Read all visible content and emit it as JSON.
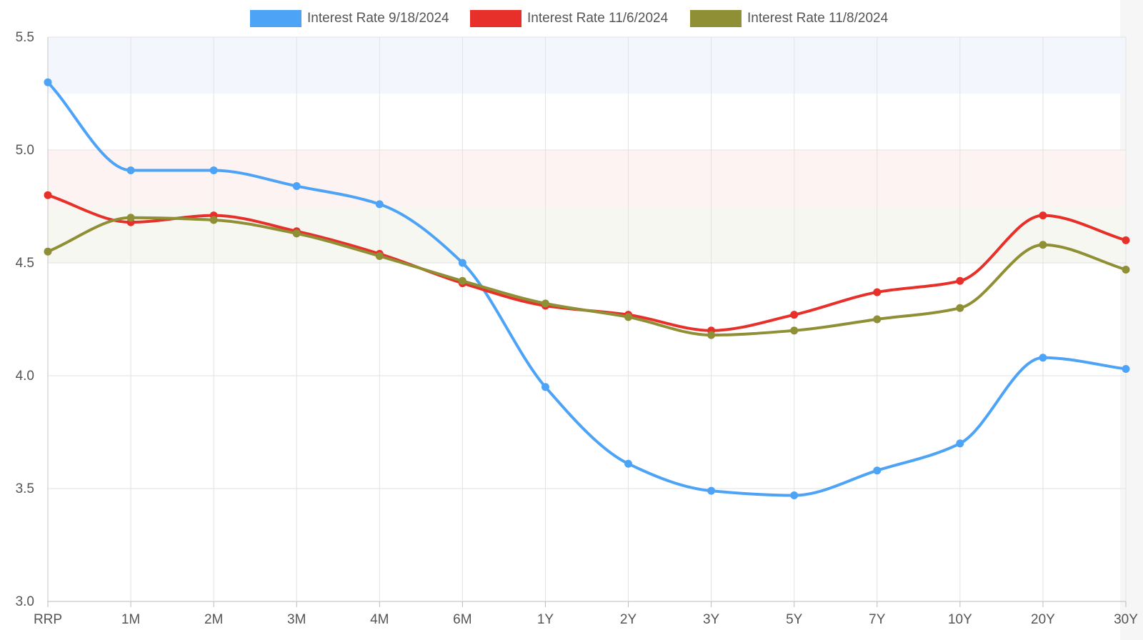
{
  "chart_data": {
    "type": "line",
    "categories": [
      "RRP",
      "1M",
      "2M",
      "3M",
      "4M",
      "6M",
      "1Y",
      "2Y",
      "3Y",
      "5Y",
      "7Y",
      "10Y",
      "20Y",
      "30Y"
    ],
    "series": [
      {
        "name": "Interest Rate 9/18/2024",
        "color": "#4da3f5",
        "values": [
          5.3,
          4.91,
          4.91,
          4.84,
          4.76,
          4.5,
          3.95,
          3.61,
          3.49,
          3.47,
          3.58,
          3.7,
          4.08,
          4.03
        ]
      },
      {
        "name": "Interest Rate 11/6/2024",
        "color": "#e8302a",
        "values": [
          4.8,
          4.68,
          4.71,
          4.64,
          4.54,
          4.41,
          4.31,
          4.27,
          4.2,
          4.27,
          4.37,
          4.42,
          4.71,
          4.6
        ]
      },
      {
        "name": "Interest Rate 11/8/2024",
        "color": "#8f8f35",
        "values": [
          4.55,
          4.7,
          4.69,
          4.63,
          4.53,
          4.42,
          4.32,
          4.26,
          4.18,
          4.2,
          4.25,
          4.3,
          4.58,
          4.47
        ]
      }
    ],
    "bands": [
      {
        "from": 5.25,
        "to": 5.5,
        "color": "#f3f7fd"
      },
      {
        "from": 4.75,
        "to": 5.0,
        "color": "#fdf3f3"
      },
      {
        "from": 4.5,
        "to": 4.75,
        "color": "#f7f7f2"
      }
    ],
    "ylim": [
      3.0,
      5.5
    ],
    "yticks": [
      "3.0",
      "3.5",
      "4.0",
      "4.5",
      "5.0",
      "5.5"
    ],
    "grid": true,
    "legend_position": "top-center"
  }
}
